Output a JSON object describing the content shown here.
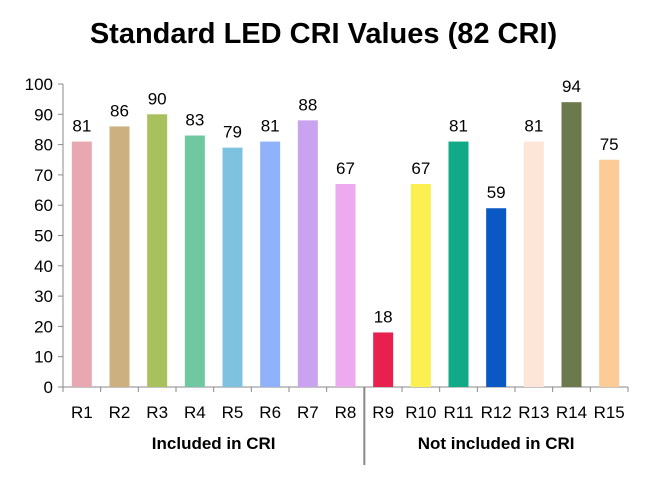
{
  "chart_data": {
    "type": "bar",
    "title": "Standard LED CRI Values (82 CRI)",
    "categories": [
      "R1",
      "R2",
      "R3",
      "R4",
      "R5",
      "R6",
      "R7",
      "R8",
      "R9",
      "R10",
      "R11",
      "R12",
      "R13",
      "R14",
      "R15"
    ],
    "values": [
      81,
      86,
      90,
      83,
      79,
      81,
      88,
      67,
      18,
      67,
      81,
      59,
      81,
      94,
      75
    ],
    "colors": [
      "#e8a8b2",
      "#cdb080",
      "#a9c05e",
      "#70c8a2",
      "#7ec2e0",
      "#8fb2fa",
      "#c9a3f0",
      "#eeaaee",
      "#e82050",
      "#fcf050",
      "#10aa86",
      "#0a58c4",
      "#fde6d8",
      "#6b7a4c",
      "#fdcb96"
    ],
    "ylim": [
      0,
      100
    ],
    "yticks": [
      0,
      10,
      20,
      30,
      40,
      50,
      60,
      70,
      80,
      90,
      100
    ],
    "grid": false,
    "legend": "none",
    "groups": [
      {
        "label": "Included in CRI",
        "start": 0,
        "end": 7
      },
      {
        "label": "Not included in CRI",
        "start": 8,
        "end": 14
      }
    ]
  }
}
